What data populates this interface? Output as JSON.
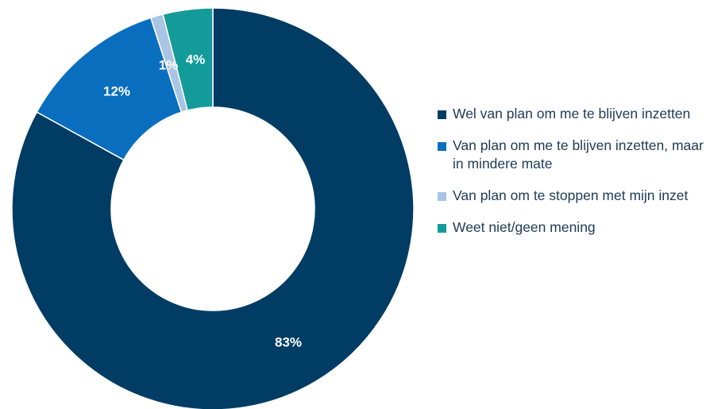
{
  "chart_data": {
    "type": "pie",
    "style": "donut",
    "title": "",
    "legend_position": "right",
    "slices": [
      {
        "label": "Wel van plan om me te blijven inzetten",
        "value": 83,
        "value_label": "83%",
        "color": "#003c64"
      },
      {
        "label": "Van plan om me te blijven inzetten, maar in mindere mate",
        "value": 12,
        "value_label": "12%",
        "color": "#0a6ebe"
      },
      {
        "label": "Van plan om te stoppen met mijn inzet",
        "value": 1,
        "value_label": "1%",
        "color": "#a9c4e4"
      },
      {
        "label": "Weet niet/geen mening",
        "value": 4,
        "value_label": "4%",
        "color": "#139b9a"
      }
    ]
  }
}
